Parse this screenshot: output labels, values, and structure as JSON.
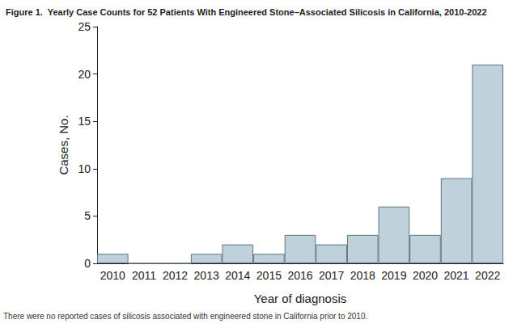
{
  "chart_data": {
    "type": "bar",
    "title": "Figure 1.  Yearly Case Counts for 52 Patients With Engineered Stone–Associated Silicosis in California, 2010-2022",
    "xlabel": "Year of diagnosis",
    "ylabel": "Cases, No.",
    "annotations": [
      "There were no reported cases of silicosis associated with engineered stone in California prior to 2010."
    ],
    "categories": [
      "2010",
      "2011",
      "2012",
      "2013",
      "2014",
      "2015",
      "2016",
      "2017",
      "2018",
      "2019",
      "2020",
      "2021",
      "2022"
    ],
    "values": [
      1,
      0,
      0,
      1,
      2,
      1,
      3,
      2,
      3,
      6,
      3,
      9,
      21
    ],
    "color": "#bfd2db",
    "ylim": [
      0,
      25
    ],
    "yticks": [
      0,
      5,
      10,
      15,
      20,
      25
    ],
    "grid": false
  }
}
